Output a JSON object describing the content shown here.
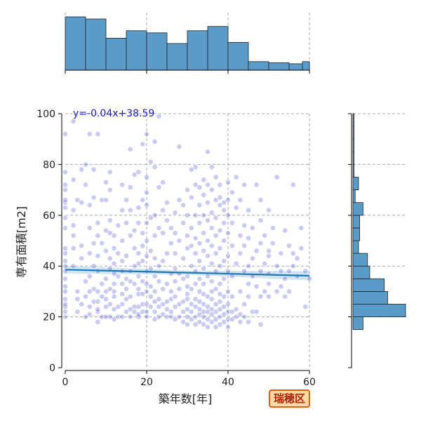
{
  "region_badge": "瑞穂区",
  "equation": "y=-0.04x+38.59",
  "chart_data": {
    "type": "scatter",
    "xlabel": "築年数[年]",
    "ylabel": "専有面積[m2]",
    "xlim": [
      0,
      60
    ],
    "ylim": [
      0,
      100
    ],
    "x_ticks": [
      "0",
      "20",
      "40",
      "60"
    ],
    "y_ticks": [
      "0",
      "20",
      "40",
      "60",
      "80",
      "100"
    ],
    "grid": true,
    "regression": {
      "slope": -0.04,
      "intercept": 38.59,
      "x_range": [
        0,
        60
      ]
    },
    "scatter_color": "#1010c0",
    "hist_color": "#5b9bc8",
    "points": [
      [
        0,
        20
      ],
      [
        0,
        22
      ],
      [
        0,
        24
      ],
      [
        0,
        25
      ],
      [
        0,
        27
      ],
      [
        0,
        30
      ],
      [
        0,
        32
      ],
      [
        0,
        35
      ],
      [
        0,
        38
      ],
      [
        0,
        40
      ],
      [
        0,
        42
      ],
      [
        0,
        45
      ],
      [
        0,
        47
      ],
      [
        0,
        55
      ],
      [
        0,
        59
      ],
      [
        0,
        63
      ],
      [
        0,
        65
      ],
      [
        0,
        66
      ],
      [
        0,
        70
      ],
      [
        0,
        72
      ],
      [
        0,
        77
      ],
      [
        0,
        92
      ],
      [
        2,
        40
      ],
      [
        2,
        47
      ],
      [
        2,
        52
      ],
      [
        2,
        56
      ],
      [
        2,
        62
      ],
      [
        2,
        74
      ],
      [
        2,
        97
      ],
      [
        3,
        30
      ],
      [
        3,
        22
      ],
      [
        3,
        27
      ],
      [
        3,
        66
      ],
      [
        4,
        25
      ],
      [
        4,
        43
      ],
      [
        4,
        48
      ],
      [
        4,
        65
      ],
      [
        4,
        78
      ],
      [
        5,
        34
      ],
      [
        5,
        28
      ],
      [
        5,
        20
      ],
      [
        5,
        72
      ],
      [
        5,
        80
      ],
      [
        6,
        21
      ],
      [
        6,
        24
      ],
      [
        6,
        30
      ],
      [
        6,
        36
      ],
      [
        6,
        45
      ],
      [
        6,
        55
      ],
      [
        6,
        64
      ],
      [
        6,
        92
      ],
      [
        7,
        26
      ],
      [
        7,
        31
      ],
      [
        7,
        40
      ],
      [
        7,
        49
      ],
      [
        7,
        67
      ],
      [
        7,
        78
      ],
      [
        8,
        18
      ],
      [
        8,
        22
      ],
      [
        8,
        23
      ],
      [
        8,
        26
      ],
      [
        8,
        30
      ],
      [
        8,
        38
      ],
      [
        8,
        44
      ],
      [
        8,
        52
      ],
      [
        8,
        57
      ],
      [
        8,
        92
      ],
      [
        9,
        20
      ],
      [
        9,
        28
      ],
      [
        9,
        33
      ],
      [
        9,
        49
      ],
      [
        9,
        66
      ],
      [
        10,
        20
      ],
      [
        10,
        24
      ],
      [
        10,
        27
      ],
      [
        10,
        30
      ],
      [
        10,
        35
      ],
      [
        10,
        46
      ],
      [
        10,
        54
      ],
      [
        10,
        66
      ],
      [
        10,
        73
      ],
      [
        11,
        20
      ],
      [
        11,
        25
      ],
      [
        11,
        31
      ],
      [
        11,
        39
      ],
      [
        11,
        43
      ],
      [
        11,
        53
      ],
      [
        11,
        58
      ],
      [
        11,
        70
      ],
      [
        11,
        77
      ],
      [
        12,
        19
      ],
      [
        12,
        23
      ],
      [
        12,
        28
      ],
      [
        12,
        30
      ],
      [
        12,
        33
      ],
      [
        12,
        37
      ],
      [
        12,
        41
      ],
      [
        12,
        47
      ],
      [
        12,
        52
      ],
      [
        13,
        20
      ],
      [
        13,
        24
      ],
      [
        13,
        36
      ],
      [
        13,
        45
      ],
      [
        13,
        56
      ],
      [
        14,
        20
      ],
      [
        14,
        25
      ],
      [
        14,
        29
      ],
      [
        14,
        33
      ],
      [
        14,
        38
      ],
      [
        14,
        42
      ],
      [
        14,
        50
      ],
      [
        14,
        62
      ],
      [
        14,
        72
      ],
      [
        15,
        22
      ],
      [
        15,
        27
      ],
      [
        15,
        31
      ],
      [
        15,
        35
      ],
      [
        15,
        44
      ],
      [
        15,
        57
      ],
      [
        15,
        66
      ],
      [
        16,
        20
      ],
      [
        16,
        23
      ],
      [
        16,
        28
      ],
      [
        16,
        34
      ],
      [
        16,
        38
      ],
      [
        16,
        52
      ],
      [
        16,
        62
      ],
      [
        16,
        71
      ],
      [
        16,
        86
      ],
      [
        17,
        22
      ],
      [
        17,
        24
      ],
      [
        17,
        33
      ],
      [
        17,
        40
      ],
      [
        17,
        47
      ],
      [
        17,
        54
      ],
      [
        17,
        76
      ],
      [
        18,
        20
      ],
      [
        18,
        21
      ],
      [
        18,
        24
      ],
      [
        18,
        29
      ],
      [
        18,
        31
      ],
      [
        18,
        36
      ],
      [
        18,
        41
      ],
      [
        18,
        45
      ],
      [
        18,
        57
      ],
      [
        18,
        63
      ],
      [
        18,
        77
      ],
      [
        19,
        22
      ],
      [
        19,
        25
      ],
      [
        19,
        29
      ],
      [
        19,
        34
      ],
      [
        19,
        42
      ],
      [
        19,
        48
      ],
      [
        19,
        53
      ],
      [
        19,
        66
      ],
      [
        19,
        88
      ],
      [
        20,
        20
      ],
      [
        20,
        22
      ],
      [
        20,
        25
      ],
      [
        20,
        30
      ],
      [
        20,
        33
      ],
      [
        20,
        38
      ],
      [
        20,
        44
      ],
      [
        20,
        50
      ],
      [
        20,
        57
      ],
      [
        20,
        64
      ],
      [
        20,
        69
      ],
      [
        20,
        75
      ],
      [
        20,
        92
      ],
      [
        21,
        24
      ],
      [
        21,
        28
      ],
      [
        21,
        32
      ],
      [
        21,
        39
      ],
      [
        21,
        46
      ],
      [
        21,
        59
      ],
      [
        21,
        81
      ],
      [
        22,
        19
      ],
      [
        22,
        22
      ],
      [
        22,
        26
      ],
      [
        22,
        30
      ],
      [
        22,
        36
      ],
      [
        22,
        43
      ],
      [
        22,
        52
      ],
      [
        22,
        60
      ],
      [
        22,
        79
      ],
      [
        22,
        89
      ],
      [
        23,
        20
      ],
      [
        23,
        24
      ],
      [
        23,
        27
      ],
      [
        23,
        34
      ],
      [
        23,
        40
      ],
      [
        23,
        55
      ],
      [
        23,
        71
      ],
      [
        23,
        99
      ],
      [
        24,
        21
      ],
      [
        24,
        25
      ],
      [
        24,
        31
      ],
      [
        24,
        42
      ],
      [
        24,
        53
      ],
      [
        24,
        62
      ],
      [
        24,
        73
      ],
      [
        25,
        20
      ],
      [
        25,
        23
      ],
      [
        25,
        26
      ],
      [
        25,
        33
      ],
      [
        25,
        45
      ],
      [
        25,
        58
      ],
      [
        25,
        65
      ],
      [
        26,
        20
      ],
      [
        26,
        22
      ],
      [
        26,
        27
      ],
      [
        26,
        30
      ],
      [
        26,
        37
      ],
      [
        26,
        49
      ],
      [
        26,
        55
      ],
      [
        27,
        19
      ],
      [
        27,
        24
      ],
      [
        27,
        28
      ],
      [
        27,
        34
      ],
      [
        27,
        39
      ],
      [
        27,
        45
      ],
      [
        27,
        53
      ],
      [
        27,
        61
      ],
      [
        28,
        20
      ],
      [
        28,
        25
      ],
      [
        28,
        31
      ],
      [
        28,
        37
      ],
      [
        28,
        50
      ],
      [
        28,
        66
      ],
      [
        28,
        87
      ],
      [
        29,
        18
      ],
      [
        29,
        22
      ],
      [
        29,
        26
      ],
      [
        29,
        35
      ],
      [
        29,
        43
      ],
      [
        29,
        57
      ],
      [
        29,
        64
      ],
      [
        30,
        17
      ],
      [
        30,
        20
      ],
      [
        30,
        23
      ],
      [
        30,
        27
      ],
      [
        30,
        29
      ],
      [
        30,
        32
      ],
      [
        30,
        36
      ],
      [
        30,
        47
      ],
      [
        30,
        52
      ],
      [
        30,
        60
      ],
      [
        30,
        70
      ],
      [
        31,
        19
      ],
      [
        31,
        22
      ],
      [
        31,
        25
      ],
      [
        31,
        31
      ],
      [
        31,
        40
      ],
      [
        31,
        48
      ],
      [
        31,
        55
      ],
      [
        31,
        67
      ],
      [
        31,
        78
      ],
      [
        32,
        17
      ],
      [
        32,
        20
      ],
      [
        32,
        24
      ],
      [
        32,
        27
      ],
      [
        32,
        33
      ],
      [
        32,
        38
      ],
      [
        32,
        45
      ],
      [
        32,
        51
      ],
      [
        32,
        60
      ],
      [
        32,
        72
      ],
      [
        32,
        79
      ],
      [
        33,
        18
      ],
      [
        33,
        21
      ],
      [
        33,
        23
      ],
      [
        33,
        26
      ],
      [
        33,
        30
      ],
      [
        33,
        35
      ],
      [
        33,
        42
      ],
      [
        33,
        49
      ],
      [
        33,
        57
      ],
      [
        33,
        64
      ],
      [
        33,
        71
      ],
      [
        34,
        17
      ],
      [
        34,
        20
      ],
      [
        34,
        22
      ],
      [
        34,
        25
      ],
      [
        34,
        29
      ],
      [
        34,
        33
      ],
      [
        34,
        39
      ],
      [
        34,
        46
      ],
      [
        34,
        53
      ],
      [
        34,
        60
      ],
      [
        34,
        68
      ],
      [
        34,
        74
      ],
      [
        35,
        16
      ],
      [
        35,
        19
      ],
      [
        35,
        22
      ],
      [
        35,
        24
      ],
      [
        35,
        28
      ],
      [
        35,
        36
      ],
      [
        35,
        44
      ],
      [
        35,
        50
      ],
      [
        35,
        58
      ],
      [
        35,
        65
      ],
      [
        35,
        72
      ],
      [
        35,
        85
      ],
      [
        36,
        18
      ],
      [
        36,
        21
      ],
      [
        36,
        23
      ],
      [
        36,
        27
      ],
      [
        36,
        30
      ],
      [
        36,
        34
      ],
      [
        36,
        41
      ],
      [
        36,
        48
      ],
      [
        36,
        55
      ],
      [
        36,
        61
      ],
      [
        36,
        70
      ],
      [
        36,
        79
      ],
      [
        37,
        16
      ],
      [
        37,
        19
      ],
      [
        37,
        22
      ],
      [
        37,
        25
      ],
      [
        37,
        31
      ],
      [
        37,
        38
      ],
      [
        37,
        45
      ],
      [
        37,
        52
      ],
      [
        37,
        59
      ],
      [
        37,
        66
      ],
      [
        37,
        75
      ],
      [
        38,
        17
      ],
      [
        38,
        20
      ],
      [
        38,
        23
      ],
      [
        38,
        26
      ],
      [
        38,
        29
      ],
      [
        38,
        33
      ],
      [
        38,
        40
      ],
      [
        38,
        47
      ],
      [
        38,
        54
      ],
      [
        38,
        64
      ],
      [
        38,
        67
      ],
      [
        38,
        72
      ],
      [
        39,
        18
      ],
      [
        39,
        21
      ],
      [
        39,
        24
      ],
      [
        39,
        28
      ],
      [
        39,
        35
      ],
      [
        39,
        42
      ],
      [
        39,
        50
      ],
      [
        39,
        57
      ],
      [
        39,
        62
      ],
      [
        39,
        65
      ],
      [
        40,
        16
      ],
      [
        40,
        19
      ],
      [
        40,
        22
      ],
      [
        40,
        25
      ],
      [
        40,
        30
      ],
      [
        40,
        38
      ],
      [
        40,
        44
      ],
      [
        40,
        53
      ],
      [
        40,
        60
      ],
      [
        40,
        66
      ],
      [
        40,
        73
      ],
      [
        41,
        19
      ],
      [
        41,
        22
      ],
      [
        41,
        28
      ],
      [
        41,
        36
      ],
      [
        41,
        48
      ],
      [
        41,
        57
      ],
      [
        41,
        69
      ],
      [
        42,
        20
      ],
      [
        42,
        23
      ],
      [
        42,
        41
      ],
      [
        42,
        63
      ],
      [
        42,
        75
      ],
      [
        43,
        18
      ],
      [
        43,
        21
      ],
      [
        43,
        30
      ],
      [
        43,
        45
      ],
      [
        43,
        52
      ],
      [
        43,
        66
      ],
      [
        44,
        20
      ],
      [
        44,
        25
      ],
      [
        44,
        38
      ],
      [
        44,
        48
      ],
      [
        44,
        56
      ],
      [
        44,
        72
      ],
      [
        45,
        18
      ],
      [
        45,
        28
      ],
      [
        45,
        33
      ],
      [
        45,
        40
      ],
      [
        45,
        51
      ],
      [
        45,
        62
      ],
      [
        46,
        22
      ],
      [
        46,
        36
      ],
      [
        46,
        43
      ],
      [
        46,
        55
      ],
      [
        47,
        22
      ],
      [
        47,
        32
      ],
      [
        47,
        46
      ],
      [
        47,
        72
      ],
      [
        48,
        17
      ],
      [
        48,
        28
      ],
      [
        48,
        38
      ],
      [
        48,
        49
      ],
      [
        48,
        58
      ],
      [
        48,
        66
      ],
      [
        49,
        30
      ],
      [
        49,
        41
      ],
      [
        49,
        52
      ],
      [
        50,
        28
      ],
      [
        50,
        33
      ],
      [
        50,
        37
      ],
      [
        50,
        44
      ],
      [
        50,
        46
      ],
      [
        50,
        62
      ],
      [
        51,
        49
      ],
      [
        51,
        55
      ],
      [
        52,
        30
      ],
      [
        52,
        40
      ],
      [
        52,
        75
      ],
      [
        53,
        32
      ],
      [
        53,
        38
      ],
      [
        53,
        45
      ],
      [
        54,
        28
      ],
      [
        54,
        35
      ],
      [
        54,
        54
      ],
      [
        55,
        30
      ],
      [
        55,
        38
      ],
      [
        55,
        48
      ],
      [
        56,
        40
      ],
      [
        56,
        45
      ],
      [
        56,
        72
      ],
      [
        57,
        36
      ],
      [
        57,
        43
      ],
      [
        58,
        47
      ],
      [
        58,
        55
      ],
      [
        59,
        24
      ],
      [
        59,
        38
      ],
      [
        60,
        35
      ]
    ],
    "x_hist": {
      "bin_edges": [
        0,
        5,
        10,
        15,
        20,
        25,
        30,
        35,
        40,
        45,
        50,
        55,
        60
      ],
      "counts": [
        50,
        48,
        30,
        37,
        35,
        25,
        37,
        41,
        26,
        8,
        7,
        6
      ],
      "extra_last": [
        60,
        61.5,
        8
      ]
    },
    "y_hist": {
      "bin_edges": [
        15,
        20,
        25,
        30,
        35,
        40,
        45,
        50,
        55,
        60,
        65,
        70,
        75,
        80,
        85,
        90,
        95,
        100
      ],
      "counts": [
        9,
        47,
        31,
        28,
        15,
        13,
        5,
        6,
        6,
        9,
        2,
        5,
        1,
        1,
        1,
        1,
        1
      ]
    }
  }
}
